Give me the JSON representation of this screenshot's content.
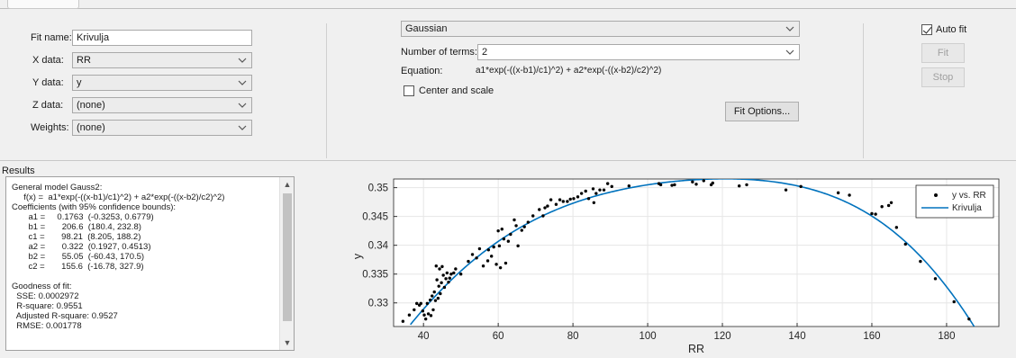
{
  "fit": {
    "fit_name_label": "Fit name:",
    "fit_name_value": "Krivulja",
    "x_data_label": "X data:",
    "x_data_value": "RR",
    "y_data_label": "Y data:",
    "y_data_value": "y",
    "z_data_label": "Z data:",
    "z_data_value": "(none)",
    "weights_label": "Weights:",
    "weights_value": "(none)"
  },
  "model": {
    "type_value": "Gaussian",
    "num_terms_label": "Number of terms:",
    "num_terms_value": "2",
    "equation_label": "Equation:",
    "equation_value": "a1*exp(-((x-b1)/c1)^2) + a2*exp(-((x-b2)/c2)^2)",
    "center_scale_label": "Center and scale",
    "center_scale_checked": false,
    "fit_options_label": "Fit Options..."
  },
  "controls": {
    "auto_fit_label": "Auto fit",
    "auto_fit_checked": true,
    "fit_label": "Fit",
    "stop_label": "Stop"
  },
  "results": {
    "title": "Results",
    "lines": [
      "General model Gauss2:",
      "     f(x) =  a1*exp(-((x-b1)/c1)^2) + a2*exp(-((x-b2)/c2)^2)",
      "Coefficients (with 95% confidence bounds):",
      "       a1 =     0.1763  (-0.3253, 0.6779)",
      "       b1 =       206.6  (180.4, 232.8)",
      "       c1 =       98.21  (8.205, 188.2)",
      "       a2 =       0.322  (0.1927, 0.4513)",
      "       b2 =       55.05  (-60.43, 170.5)",
      "       c2 =       155.6  (-16.78, 327.9)",
      "",
      "Goodness of fit:",
      "  SSE: 0.0002972",
      "  R-square: 0.9551",
      "  Adjusted R-square: 0.9527",
      "  RMSE: 0.001778"
    ]
  },
  "colors": {
    "fit_line": "#0072bd",
    "points": "#000000",
    "plot_bg": "#ffffff"
  },
  "chart_data": {
    "type": "scatter",
    "title": "",
    "xlabel": "RR",
    "ylabel": "y",
    "xlim": [
      32,
      194
    ],
    "ylim": [
      0.3259,
      0.3515
    ],
    "xticks": [
      40,
      60,
      80,
      100,
      120,
      140,
      160,
      180
    ],
    "yticks": [
      0.33,
      0.335,
      0.34,
      0.345,
      0.35
    ],
    "ytick_labels": [
      "0.33",
      "0.335",
      "0.34",
      "0.345",
      "0.35"
    ],
    "grid": true,
    "legend_position": "top-right",
    "legend": [
      "y vs. RR",
      "Krivulja"
    ],
    "series": [
      {
        "name": "y vs. RR",
        "kind": "points",
        "points": [
          [
            34.5,
            0.3268
          ],
          [
            36.2,
            0.3279
          ],
          [
            37.5,
            0.3288
          ],
          [
            38.2,
            0.3299
          ],
          [
            38.9,
            0.3296
          ],
          [
            39.3,
            0.3299
          ],
          [
            39.8,
            0.3286
          ],
          [
            40.2,
            0.3279
          ],
          [
            40.6,
            0.3272
          ],
          [
            41.0,
            0.3299
          ],
          [
            41.3,
            0.3281
          ],
          [
            41.8,
            0.3305
          ],
          [
            42.0,
            0.3278
          ],
          [
            42.3,
            0.3312
          ],
          [
            42.6,
            0.3288
          ],
          [
            42.9,
            0.3319
          ],
          [
            43.2,
            0.3304
          ],
          [
            43.4,
            0.3364
          ],
          [
            43.6,
            0.334
          ],
          [
            43.9,
            0.3308
          ],
          [
            44.1,
            0.3329
          ],
          [
            44.3,
            0.3359
          ],
          [
            44.5,
            0.3316
          ],
          [
            44.8,
            0.3335
          ],
          [
            45.0,
            0.3363
          ],
          [
            45.3,
            0.3348
          ],
          [
            45.6,
            0.3327
          ],
          [
            46.0,
            0.3342
          ],
          [
            46.3,
            0.3352
          ],
          [
            46.7,
            0.3336
          ],
          [
            47.0,
            0.3343
          ],
          [
            47.4,
            0.335
          ],
          [
            48.1,
            0.3352
          ],
          [
            48.6,
            0.3359
          ],
          [
            50.0,
            0.335
          ],
          [
            52.0,
            0.3372
          ],
          [
            53.1,
            0.3384
          ],
          [
            54.2,
            0.3378
          ],
          [
            55.0,
            0.3394
          ],
          [
            56.0,
            0.3364
          ],
          [
            57.2,
            0.3373
          ],
          [
            57.4,
            0.3392
          ],
          [
            58.2,
            0.3381
          ],
          [
            58.8,
            0.3397
          ],
          [
            59.5,
            0.3367
          ],
          [
            60.0,
            0.3425
          ],
          [
            60.3,
            0.3399
          ],
          [
            60.6,
            0.3361
          ],
          [
            61.0,
            0.3428
          ],
          [
            61.5,
            0.3411
          ],
          [
            62.0,
            0.3369
          ],
          [
            62.7,
            0.3407
          ],
          [
            63.3,
            0.3419
          ],
          [
            64.3,
            0.3444
          ],
          [
            64.8,
            0.3434
          ],
          [
            65.3,
            0.3399
          ],
          [
            66.3,
            0.3426
          ],
          [
            67.0,
            0.3432
          ],
          [
            68.0,
            0.344
          ],
          [
            69.3,
            0.3451
          ],
          [
            71.0,
            0.3462
          ],
          [
            72.0,
            0.3451
          ],
          [
            72.5,
            0.3465
          ],
          [
            73.2,
            0.3468
          ],
          [
            74.1,
            0.3479
          ],
          [
            75.5,
            0.3471
          ],
          [
            76.5,
            0.3479
          ],
          [
            77.4,
            0.3476
          ],
          [
            78.5,
            0.3476
          ],
          [
            79.3,
            0.348
          ],
          [
            80.2,
            0.3481
          ],
          [
            81.3,
            0.3484
          ],
          [
            82.3,
            0.349
          ],
          [
            83.4,
            0.3494
          ],
          [
            84.2,
            0.3481
          ],
          [
            85.4,
            0.3498
          ],
          [
            85.6,
            0.3474
          ],
          [
            86.2,
            0.349
          ],
          [
            87.2,
            0.3496
          ],
          [
            88.3,
            0.3496
          ],
          [
            89.3,
            0.3507
          ],
          [
            90.4,
            0.3502
          ],
          [
            95.0,
            0.3503
          ],
          [
            103.0,
            0.3507
          ],
          [
            103.5,
            0.3505
          ],
          [
            106.5,
            0.3504
          ],
          [
            107.2,
            0.3505
          ],
          [
            112.0,
            0.351
          ],
          [
            113.0,
            0.3506
          ],
          [
            115.0,
            0.3512
          ],
          [
            117.0,
            0.3505
          ],
          [
            117.4,
            0.3508
          ],
          [
            124.5,
            0.3503
          ],
          [
            126.5,
            0.3505
          ],
          [
            137.0,
            0.3496
          ],
          [
            141.0,
            0.3502
          ],
          [
            151.0,
            0.3491
          ],
          [
            154.0,
            0.3487
          ],
          [
            160.0,
            0.3455
          ],
          [
            161.0,
            0.3454
          ],
          [
            162.7,
            0.3467
          ],
          [
            164.5,
            0.3469
          ],
          [
            165.2,
            0.3474
          ],
          [
            166.6,
            0.3431
          ],
          [
            169.0,
            0.3402
          ],
          [
            173.0,
            0.3372
          ],
          [
            177.0,
            0.3342
          ],
          [
            182.0,
            0.3302
          ],
          [
            186.0,
            0.3272
          ]
        ]
      },
      {
        "name": "Krivulja",
        "kind": "fitted-curve",
        "model": "gauss2",
        "coefficients": {
          "a1": 0.1763,
          "b1": 206.6,
          "c1": 98.21,
          "a2": 0.322,
          "b2": 55.05,
          "c2": 155.6
        },
        "x_range": [
          36.5,
          188.5
        ]
      }
    ]
  }
}
